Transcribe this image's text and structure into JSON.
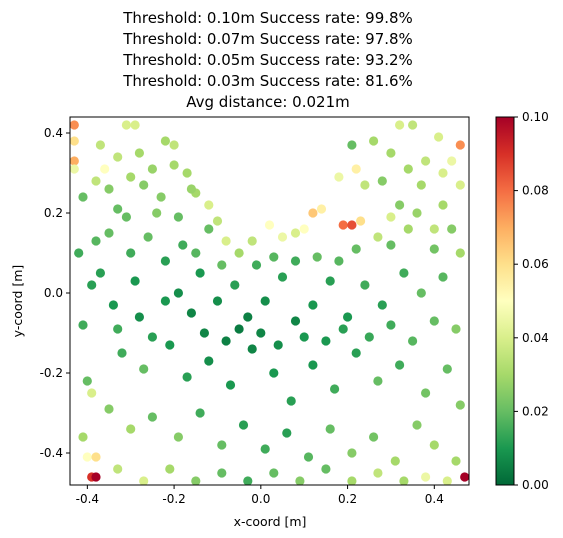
{
  "chart_data": {
    "type": "scatter",
    "title_lines": [
      "Threshold: 0.10m   Success rate: 99.8%",
      "Threshold: 0.07m   Success rate: 97.8%",
      "Threshold: 0.05m   Success rate: 93.2%",
      "Threshold: 0.03m   Success rate: 81.6%",
      "Avg distance: 0.021m"
    ],
    "xlabel": "x-coord [m]",
    "ylabel": "y-coord [m]",
    "xlim": [
      -0.44,
      0.48
    ],
    "ylim": [
      -0.48,
      0.44
    ],
    "xticks": [
      -0.4,
      -0.2,
      0.0,
      0.2,
      0.4
    ],
    "yticks": [
      -0.4,
      -0.2,
      0.0,
      0.2,
      0.4
    ],
    "colorbar": {
      "colormap": "RdYlGn_r",
      "range": [
        0.0,
        0.1
      ],
      "ticks": [
        0.0,
        0.02,
        0.04,
        0.06,
        0.08,
        0.1
      ],
      "tick_labels": [
        "0.00",
        "0.02",
        "0.04",
        "0.06",
        "0.08",
        "0.10"
      ]
    },
    "grid": false,
    "points": [
      {
        "x": -0.43,
        "y": 0.42,
        "d": 0.075
      },
      {
        "x": -0.43,
        "y": 0.38,
        "d": 0.06
      },
      {
        "x": -0.43,
        "y": 0.33,
        "d": 0.07
      },
      {
        "x": -0.43,
        "y": 0.31,
        "d": 0.045
      },
      {
        "x": -0.37,
        "y": 0.37,
        "d": 0.035
      },
      {
        "x": -0.36,
        "y": 0.31,
        "d": 0.05
      },
      {
        "x": -0.31,
        "y": 0.42,
        "d": 0.04
      },
      {
        "x": -0.29,
        "y": 0.42,
        "d": 0.04
      },
      {
        "x": -0.38,
        "y": 0.28,
        "d": 0.035
      },
      {
        "x": -0.3,
        "y": 0.29,
        "d": 0.03
      },
      {
        "x": -0.33,
        "y": 0.21,
        "d": 0.02
      },
      {
        "x": -0.24,
        "y": 0.2,
        "d": 0.025
      },
      {
        "x": -0.22,
        "y": 0.38,
        "d": 0.03
      },
      {
        "x": -0.2,
        "y": 0.37,
        "d": 0.035
      },
      {
        "x": -0.2,
        "y": 0.32,
        "d": 0.03
      },
      {
        "x": -0.17,
        "y": 0.3,
        "d": 0.03
      },
      {
        "x": -0.15,
        "y": 0.25,
        "d": 0.03
      },
      {
        "x": -0.12,
        "y": 0.22,
        "d": 0.04
      },
      {
        "x": -0.1,
        "y": 0.18,
        "d": 0.035
      },
      {
        "x": -0.08,
        "y": 0.13,
        "d": 0.04
      },
      {
        "x": -0.05,
        "y": 0.1,
        "d": 0.03
      },
      {
        "x": -0.02,
        "y": 0.13,
        "d": 0.035
      },
      {
        "x": 0.02,
        "y": 0.17,
        "d": 0.05
      },
      {
        "x": 0.05,
        "y": 0.14,
        "d": 0.045
      },
      {
        "x": 0.08,
        "y": 0.15,
        "d": 0.04
      },
      {
        "x": 0.1,
        "y": 0.16,
        "d": 0.05
      },
      {
        "x": 0.12,
        "y": 0.2,
        "d": 0.065
      },
      {
        "x": 0.14,
        "y": 0.21,
        "d": 0.055
      },
      {
        "x": 0.19,
        "y": 0.17,
        "d": 0.08
      },
      {
        "x": 0.21,
        "y": 0.17,
        "d": 0.085
      },
      {
        "x": 0.23,
        "y": 0.18,
        "d": 0.06
      },
      {
        "x": 0.24,
        "y": 0.27,
        "d": 0.035
      },
      {
        "x": 0.22,
        "y": 0.31,
        "d": 0.055
      },
      {
        "x": 0.18,
        "y": 0.29,
        "d": 0.045
      },
      {
        "x": 0.21,
        "y": 0.37,
        "d": 0.02
      },
      {
        "x": 0.26,
        "y": 0.38,
        "d": 0.03
      },
      {
        "x": 0.32,
        "y": 0.42,
        "d": 0.04
      },
      {
        "x": 0.35,
        "y": 0.42,
        "d": 0.035
      },
      {
        "x": 0.41,
        "y": 0.39,
        "d": 0.04
      },
      {
        "x": 0.46,
        "y": 0.37,
        "d": 0.075
      },
      {
        "x": 0.44,
        "y": 0.33,
        "d": 0.045
      },
      {
        "x": 0.42,
        "y": 0.3,
        "d": 0.04
      },
      {
        "x": 0.46,
        "y": 0.27,
        "d": 0.04
      },
      {
        "x": 0.37,
        "y": 0.27,
        "d": 0.03
      },
      {
        "x": 0.3,
        "y": 0.19,
        "d": 0.04
      },
      {
        "x": 0.27,
        "y": 0.14,
        "d": 0.035
      },
      {
        "x": 0.34,
        "y": 0.16,
        "d": 0.03
      },
      {
        "x": 0.4,
        "y": 0.16,
        "d": 0.035
      },
      {
        "x": 0.46,
        "y": 0.1,
        "d": 0.03
      },
      {
        "x": -0.41,
        "y": 0.24,
        "d": 0.02
      },
      {
        "x": -0.42,
        "y": 0.1,
        "d": 0.015
      },
      {
        "x": -0.39,
        "y": 0.02,
        "d": 0.012
      },
      {
        "x": -0.41,
        "y": -0.08,
        "d": 0.015
      },
      {
        "x": -0.4,
        "y": -0.22,
        "d": 0.02
      },
      {
        "x": -0.39,
        "y": -0.25,
        "d": 0.04
      },
      {
        "x": -0.41,
        "y": -0.36,
        "d": 0.03
      },
      {
        "x": -0.4,
        "y": -0.41,
        "d": 0.05
      },
      {
        "x": -0.38,
        "y": -0.41,
        "d": 0.06
      },
      {
        "x": -0.39,
        "y": -0.46,
        "d": 0.09
      },
      {
        "x": -0.38,
        "y": -0.46,
        "d": 0.1
      },
      {
        "x": -0.35,
        "y": 0.15,
        "d": 0.02
      },
      {
        "x": -0.3,
        "y": 0.1,
        "d": 0.015
      },
      {
        "x": -0.26,
        "y": 0.14,
        "d": 0.02
      },
      {
        "x": -0.22,
        "y": 0.08,
        "d": 0.012
      },
      {
        "x": -0.18,
        "y": 0.12,
        "d": 0.015
      },
      {
        "x": -0.14,
        "y": 0.05,
        "d": 0.01
      },
      {
        "x": -0.12,
        "y": 0.16,
        "d": 0.02
      },
      {
        "x": -0.34,
        "y": -0.03,
        "d": 0.01
      },
      {
        "x": -0.28,
        "y": -0.06,
        "d": 0.008
      },
      {
        "x": -0.22,
        "y": -0.02,
        "d": 0.01
      },
      {
        "x": -0.16,
        "y": -0.05,
        "d": 0.006
      },
      {
        "x": -0.1,
        "y": -0.02,
        "d": 0.008
      },
      {
        "x": -0.06,
        "y": 0.02,
        "d": 0.012
      },
      {
        "x": -0.03,
        "y": -0.06,
        "d": 0.005
      },
      {
        "x": 0.01,
        "y": -0.02,
        "d": 0.008
      },
      {
        "x": 0.05,
        "y": 0.04,
        "d": 0.012
      },
      {
        "x": 0.08,
        "y": -0.07,
        "d": 0.006
      },
      {
        "x": 0.12,
        "y": -0.03,
        "d": 0.01
      },
      {
        "x": 0.16,
        "y": 0.03,
        "d": 0.012
      },
      {
        "x": 0.2,
        "y": -0.06,
        "d": 0.01
      },
      {
        "x": 0.24,
        "y": 0.02,
        "d": 0.015
      },
      {
        "x": 0.28,
        "y": -0.03,
        "d": 0.012
      },
      {
        "x": 0.33,
        "y": 0.05,
        "d": 0.015
      },
      {
        "x": 0.37,
        "y": 0.0,
        "d": 0.02
      },
      {
        "x": 0.42,
        "y": 0.04,
        "d": 0.018
      },
      {
        "x": 0.45,
        "y": -0.09,
        "d": 0.025
      },
      {
        "x": -0.32,
        "y": -0.15,
        "d": 0.015
      },
      {
        "x": -0.27,
        "y": -0.19,
        "d": 0.02
      },
      {
        "x": -0.21,
        "y": -0.13,
        "d": 0.01
      },
      {
        "x": -0.17,
        "y": -0.21,
        "d": 0.012
      },
      {
        "x": -0.12,
        "y": -0.17,
        "d": 0.008
      },
      {
        "x": -0.07,
        "y": -0.23,
        "d": 0.01
      },
      {
        "x": -0.02,
        "y": -0.14,
        "d": 0.006
      },
      {
        "x": 0.03,
        "y": -0.2,
        "d": 0.01
      },
      {
        "x": 0.07,
        "y": -0.27,
        "d": 0.012
      },
      {
        "x": 0.12,
        "y": -0.18,
        "d": 0.01
      },
      {
        "x": 0.17,
        "y": -0.24,
        "d": 0.015
      },
      {
        "x": 0.22,
        "y": -0.15,
        "d": 0.012
      },
      {
        "x": 0.27,
        "y": -0.22,
        "d": 0.02
      },
      {
        "x": 0.32,
        "y": -0.18,
        "d": 0.015
      },
      {
        "x": 0.38,
        "y": -0.25,
        "d": 0.022
      },
      {
        "x": 0.43,
        "y": -0.19,
        "d": 0.02
      },
      {
        "x": 0.46,
        "y": -0.28,
        "d": 0.025
      },
      {
        "x": -0.35,
        "y": -0.29,
        "d": 0.025
      },
      {
        "x": -0.3,
        "y": -0.34,
        "d": 0.03
      },
      {
        "x": -0.25,
        "y": -0.31,
        "d": 0.02
      },
      {
        "x": -0.19,
        "y": -0.36,
        "d": 0.025
      },
      {
        "x": -0.14,
        "y": -0.3,
        "d": 0.015
      },
      {
        "x": -0.09,
        "y": -0.38,
        "d": 0.02
      },
      {
        "x": -0.04,
        "y": -0.33,
        "d": 0.012
      },
      {
        "x": 0.01,
        "y": -0.39,
        "d": 0.015
      },
      {
        "x": 0.06,
        "y": -0.35,
        "d": 0.012
      },
      {
        "x": 0.11,
        "y": -0.41,
        "d": 0.018
      },
      {
        "x": 0.16,
        "y": -0.34,
        "d": 0.02
      },
      {
        "x": 0.21,
        "y": -0.4,
        "d": 0.025
      },
      {
        "x": 0.26,
        "y": -0.36,
        "d": 0.022
      },
      {
        "x": 0.31,
        "y": -0.42,
        "d": 0.03
      },
      {
        "x": 0.36,
        "y": -0.33,
        "d": 0.025
      },
      {
        "x": 0.4,
        "y": -0.38,
        "d": 0.03
      },
      {
        "x": 0.45,
        "y": -0.42,
        "d": 0.03
      },
      {
        "x": -0.33,
        "y": -0.44,
        "d": 0.035
      },
      {
        "x": -0.27,
        "y": -0.47,
        "d": 0.04
      },
      {
        "x": -0.21,
        "y": -0.44,
        "d": 0.03
      },
      {
        "x": -0.15,
        "y": -0.47,
        "d": 0.025
      },
      {
        "x": -0.09,
        "y": -0.45,
        "d": 0.02
      },
      {
        "x": -0.03,
        "y": -0.47,
        "d": 0.015
      },
      {
        "x": 0.03,
        "y": -0.45,
        "d": 0.02
      },
      {
        "x": 0.09,
        "y": -0.47,
        "d": 0.025
      },
      {
        "x": 0.15,
        "y": -0.44,
        "d": 0.02
      },
      {
        "x": 0.21,
        "y": -0.47,
        "d": 0.03
      },
      {
        "x": 0.27,
        "y": -0.45,
        "d": 0.035
      },
      {
        "x": 0.33,
        "y": -0.47,
        "d": 0.03
      },
      {
        "x": 0.38,
        "y": -0.46,
        "d": 0.045
      },
      {
        "x": 0.43,
        "y": -0.47,
        "d": 0.04
      },
      {
        "x": 0.47,
        "y": -0.46,
        "d": 0.1
      },
      {
        "x": -0.37,
        "y": 0.05,
        "d": 0.012
      },
      {
        "x": -0.33,
        "y": -0.09,
        "d": 0.015
      },
      {
        "x": -0.29,
        "y": 0.03,
        "d": 0.01
      },
      {
        "x": -0.25,
        "y": -0.11,
        "d": 0.012
      },
      {
        "x": -0.19,
        "y": 0.0,
        "d": 0.008
      },
      {
        "x": -0.13,
        "y": -0.1,
        "d": 0.006
      },
      {
        "x": -0.08,
        "y": -0.12,
        "d": 0.005
      },
      {
        "x": -0.05,
        "y": -0.09,
        "d": 0.004
      },
      {
        "x": 0.0,
        "y": -0.1,
        "d": 0.006
      },
      {
        "x": 0.04,
        "y": -0.13,
        "d": 0.008
      },
      {
        "x": 0.1,
        "y": -0.11,
        "d": 0.01
      },
      {
        "x": 0.15,
        "y": -0.12,
        "d": 0.01
      },
      {
        "x": 0.19,
        "y": -0.09,
        "d": 0.012
      },
      {
        "x": 0.25,
        "y": -0.11,
        "d": 0.014
      },
      {
        "x": 0.3,
        "y": -0.08,
        "d": 0.015
      },
      {
        "x": 0.35,
        "y": -0.12,
        "d": 0.018
      },
      {
        "x": 0.4,
        "y": -0.07,
        "d": 0.02
      },
      {
        "x": -0.38,
        "y": 0.13,
        "d": 0.018
      },
      {
        "x": -0.31,
        "y": 0.19,
        "d": 0.02
      },
      {
        "x": -0.27,
        "y": 0.27,
        "d": 0.025
      },
      {
        "x": -0.23,
        "y": 0.24,
        "d": 0.025
      },
      {
        "x": -0.19,
        "y": 0.19,
        "d": 0.02
      },
      {
        "x": -0.16,
        "y": 0.26,
        "d": 0.028
      },
      {
        "x": -0.28,
        "y": 0.35,
        "d": 0.03
      },
      {
        "x": -0.25,
        "y": 0.31,
        "d": 0.028
      },
      {
        "x": -0.33,
        "y": 0.34,
        "d": 0.035
      },
      {
        "x": -0.35,
        "y": 0.26,
        "d": 0.025
      },
      {
        "x": 0.3,
        "y": 0.35,
        "d": 0.03
      },
      {
        "x": 0.28,
        "y": 0.28,
        "d": 0.025
      },
      {
        "x": 0.34,
        "y": 0.31,
        "d": 0.03
      },
      {
        "x": 0.38,
        "y": 0.33,
        "d": 0.035
      },
      {
        "x": 0.32,
        "y": 0.22,
        "d": 0.025
      },
      {
        "x": 0.36,
        "y": 0.2,
        "d": 0.028
      },
      {
        "x": 0.42,
        "y": 0.22,
        "d": 0.03
      },
      {
        "x": 0.44,
        "y": 0.16,
        "d": 0.025
      },
      {
        "x": 0.4,
        "y": 0.11,
        "d": 0.022
      },
      {
        "x": 0.3,
        "y": 0.12,
        "d": 0.02
      },
      {
        "x": 0.22,
        "y": 0.11,
        "d": 0.02
      },
      {
        "x": 0.18,
        "y": 0.08,
        "d": 0.018
      },
      {
        "x": 0.13,
        "y": 0.09,
        "d": 0.02
      },
      {
        "x": 0.08,
        "y": 0.08,
        "d": 0.015
      },
      {
        "x": 0.03,
        "y": 0.09,
        "d": 0.018
      },
      {
        "x": -0.01,
        "y": 0.07,
        "d": 0.015
      },
      {
        "x": -0.09,
        "y": 0.07,
        "d": 0.02
      },
      {
        "x": -0.15,
        "y": 0.1,
        "d": 0.018
      }
    ]
  }
}
